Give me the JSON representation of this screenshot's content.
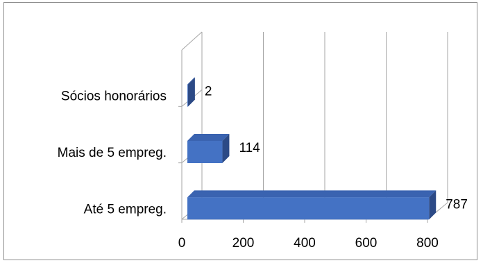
{
  "chart_data": {
    "type": "bar",
    "orientation": "horizontal",
    "style": "3d",
    "title": "",
    "xlabel": "",
    "ylabel": "",
    "categories": [
      "Sócios honorários",
      "Mais de 5 empreg.",
      "Até 5 empreg."
    ],
    "values": [
      2,
      114,
      787
    ],
    "data_labels": [
      "2",
      "114",
      "787"
    ],
    "x_ticks": [
      "0",
      "200",
      "400",
      "600",
      "800"
    ],
    "xlim": [
      0,
      800
    ],
    "grid": true,
    "legend": "none",
    "colors": {
      "bar_front": "#4472c4",
      "bar_side": "#2c4a86",
      "bar_top": "#3a63b0",
      "grid": "#a6a6a6"
    }
  }
}
